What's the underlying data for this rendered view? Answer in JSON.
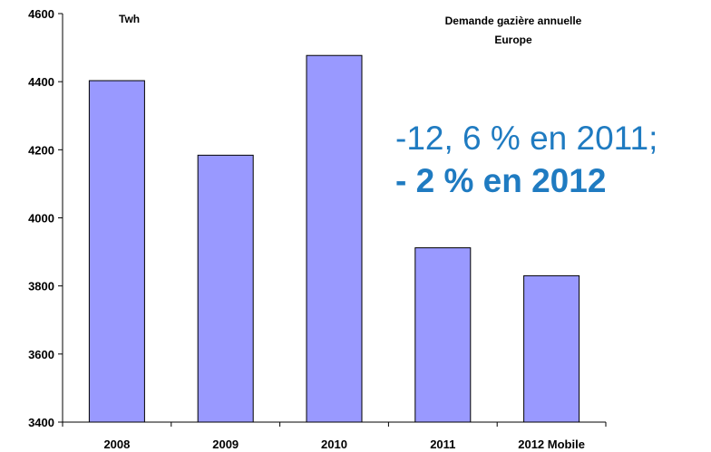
{
  "chart_data": {
    "type": "bar",
    "categories": [
      "2008",
      "2009",
      "2010",
      "2011",
      "2012 Mobile"
    ],
    "values": [
      4403,
      4184,
      4477,
      3912,
      3830
    ],
    "ylim": [
      3400,
      4600
    ],
    "yticks": [
      3400,
      3600,
      3800,
      4000,
      4200,
      4400,
      4600
    ],
    "unit_label": "Twh",
    "title_lines": [
      "Demande gazière annuelle",
      "Europe"
    ],
    "bar_color": "#9999ff",
    "bar_edge_color": "#000000",
    "grid": false,
    "annotations": {
      "line1": "-12, 6 % en 2011;",
      "line2": "- 2 % en 2012",
      "color": "#1f7bc1"
    }
  }
}
